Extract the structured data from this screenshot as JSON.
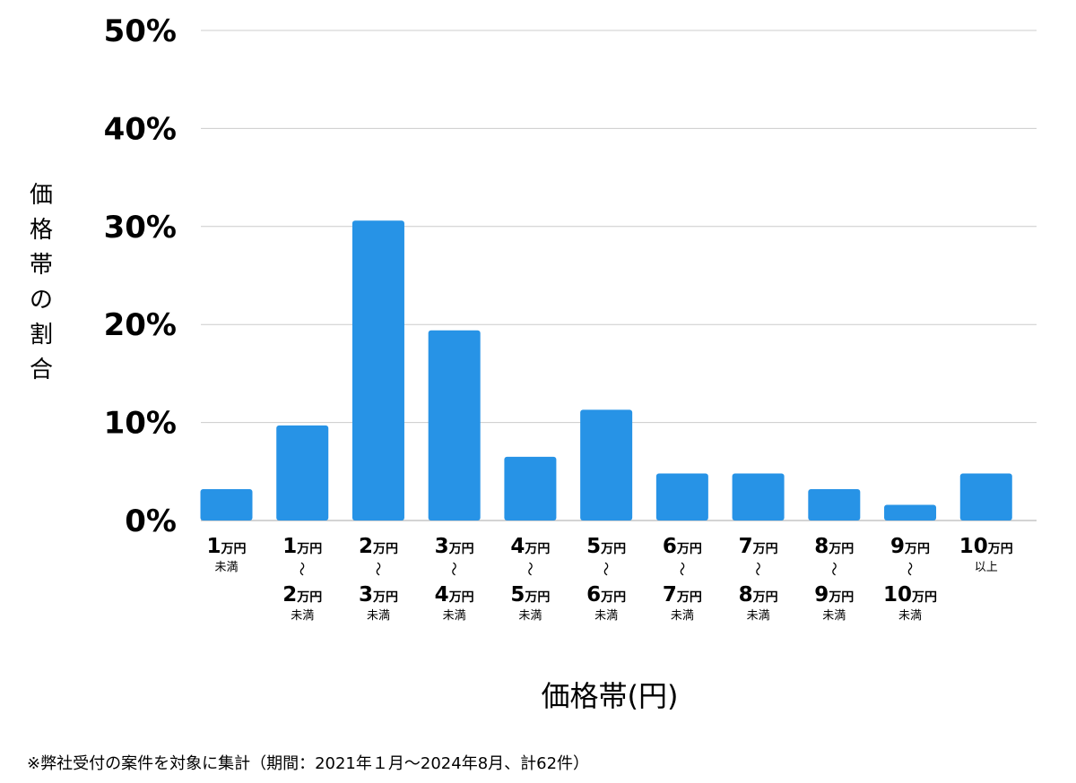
{
  "chart_data": {
    "type": "bar",
    "title": "",
    "ylabel": "価格帯の割合",
    "xlabel": "価格帯(円)",
    "ylim": [
      0,
      50
    ],
    "yticks": [
      "0%",
      "10%",
      "20%",
      "30%",
      "40%",
      "50%"
    ],
    "grid": true,
    "categories": [
      {
        "lines": [
          {
            "num": "1",
            "unit": "万円"
          }
        ],
        "suffix": "未満"
      },
      {
        "lines": [
          {
            "num": "1",
            "unit": "万円"
          },
          {
            "num": "2",
            "unit": "万円"
          }
        ],
        "suffix": "未満"
      },
      {
        "lines": [
          {
            "num": "2",
            "unit": "万円"
          },
          {
            "num": "3",
            "unit": "万円"
          }
        ],
        "suffix": "未満"
      },
      {
        "lines": [
          {
            "num": "3",
            "unit": "万円"
          },
          {
            "num": "4",
            "unit": "万円"
          }
        ],
        "suffix": "未満"
      },
      {
        "lines": [
          {
            "num": "4",
            "unit": "万円"
          },
          {
            "num": "5",
            "unit": "万円"
          }
        ],
        "suffix": "未満"
      },
      {
        "lines": [
          {
            "num": "5",
            "unit": "万円"
          },
          {
            "num": "6",
            "unit": "万円"
          }
        ],
        "suffix": "未満"
      },
      {
        "lines": [
          {
            "num": "6",
            "unit": "万円"
          },
          {
            "num": "7",
            "unit": "万円"
          }
        ],
        "suffix": "未満"
      },
      {
        "lines": [
          {
            "num": "7",
            "unit": "万円"
          },
          {
            "num": "8",
            "unit": "万円"
          }
        ],
        "suffix": "未満"
      },
      {
        "lines": [
          {
            "num": "8",
            "unit": "万円"
          },
          {
            "num": "9",
            "unit": "万円"
          }
        ],
        "suffix": "未満"
      },
      {
        "lines": [
          {
            "num": "9",
            "unit": "万円"
          },
          {
            "num": "10",
            "unit": "万円"
          }
        ],
        "suffix": "未満"
      },
      {
        "lines": [
          {
            "num": "10",
            "unit": "万円"
          }
        ],
        "suffix": "以上"
      }
    ],
    "range_symbol": "〜",
    "values": [
      3.2,
      9.7,
      30.6,
      19.4,
      6.5,
      11.3,
      4.8,
      4.8,
      3.2,
      1.6,
      4.8
    ],
    "bar_color": "#2793e6",
    "grid_color": "#cccccc"
  },
  "footnote": "※弊社受付の案件を対象に集計（期間：2021年１月〜2024年8月、計62件）"
}
